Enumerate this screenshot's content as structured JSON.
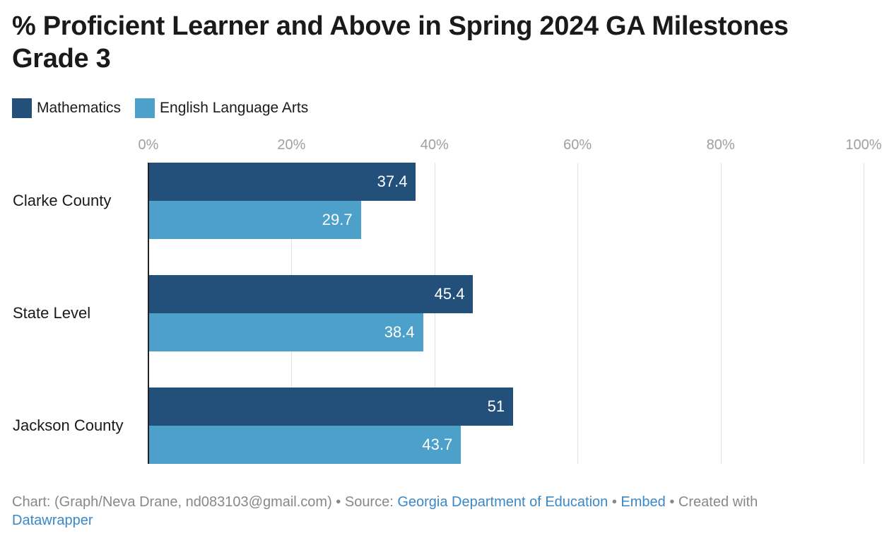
{
  "chart_data": {
    "type": "bar",
    "orientation": "horizontal",
    "title": "% Proficient Learner and Above in Spring 2024 GA Milestones Grade 3",
    "categories": [
      "Clarke County",
      "State Level",
      "Jackson County"
    ],
    "series": [
      {
        "name": "Mathematics",
        "color": "#22507a",
        "values": [
          37.4,
          45.4,
          51
        ],
        "labels": [
          "37.4",
          "45.4",
          "51"
        ]
      },
      {
        "name": "English Language Arts",
        "color": "#4ca0ca",
        "values": [
          29.7,
          38.4,
          43.7
        ],
        "labels": [
          "29.7",
          "38.4",
          "43.7"
        ]
      }
    ],
    "xlim": [
      0,
      100
    ],
    "ticks": [
      "0%",
      "20%",
      "40%",
      "60%",
      "80%",
      "100%"
    ],
    "tick_values": [
      0,
      20,
      40,
      60,
      80,
      100
    ],
    "grid": true,
    "legend": "top-left"
  },
  "footer": {
    "prefix": "Chart: (Graph/Neva Drane, nd083103@gmail.com) • Source: ",
    "source_link": "Georgia Department of Education",
    "sep1": " • ",
    "embed_link": "Embed",
    "created": "  • Created with ",
    "datawrapper_link": "Datawrapper"
  }
}
